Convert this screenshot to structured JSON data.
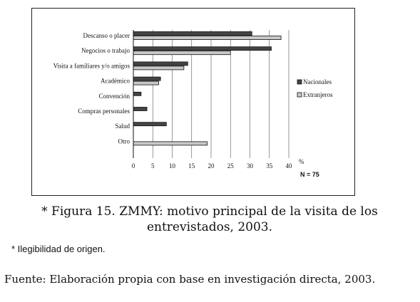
{
  "chart_data": {
    "type": "bar",
    "orientation": "horizontal",
    "categories": [
      "Descanso o placer",
      "Negocios o trabajo",
      "Visita a familiares y/o amigos",
      "Académico",
      "Convención",
      "Compras personales",
      "Salud",
      "Otro"
    ],
    "series": [
      {
        "name": "Nacionales",
        "color": "#444444",
        "values": [
          30.5,
          35.5,
          14,
          7,
          2,
          3.5,
          8.5,
          0
        ]
      },
      {
        "name": "Extranjeros",
        "color": "#c8c8c8",
        "values": [
          38,
          25,
          13,
          6.5,
          0,
          0,
          0,
          19
        ]
      }
    ],
    "xlim": [
      0,
      40
    ],
    "xticks": [
      "0",
      "5",
      "10",
      "15",
      "20",
      "25",
      "30",
      "35",
      "40"
    ],
    "xlabel": "%",
    "note": "N = 75",
    "legend_position": "right",
    "grid": "vertical"
  },
  "caption": {
    "line1": "* Figura 15. ZMMY: motivo principal de la visita de los",
    "line2": "entrevistados, 2003."
  },
  "illegible_note": "* Ilegibilidad de origen.",
  "source": "Fuente: Elaboración propia con base en investigación directa, 2003."
}
